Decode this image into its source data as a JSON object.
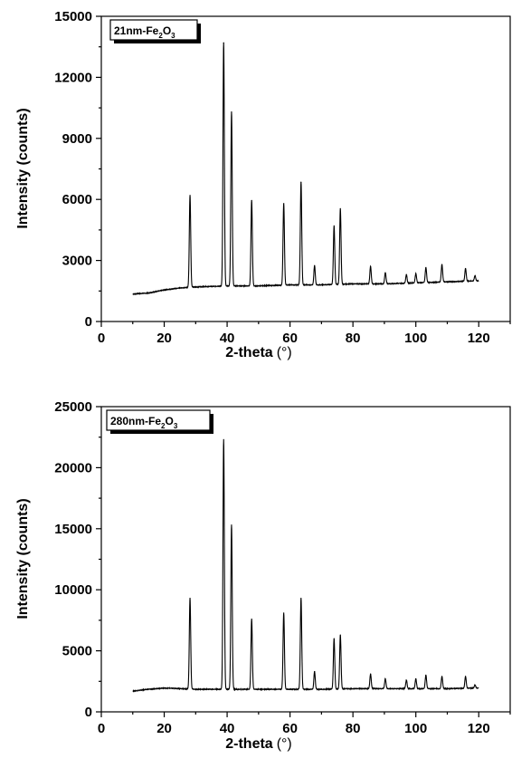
{
  "chart_data": [
    {
      "type": "line",
      "legend_label": "21nm-Fe₂O₃",
      "legend_parts": {
        "pre": "21nm-Fe",
        "sub1": "2",
        "mid": "O",
        "sub2": "3"
      },
      "xlabel": "2-theta (°)",
      "xlabel_parts": {
        "main": "2-theta",
        "unit": "(°)"
      },
      "ylabel": "Intensity (counts)",
      "xlim": [
        0,
        130
      ],
      "ylim": [
        0,
        15000
      ],
      "xticks": [
        0,
        20,
        40,
        60,
        80,
        100,
        120
      ],
      "yticks": [
        0,
        3000,
        6000,
        9000,
        12000,
        15000
      ],
      "baseline": [
        [
          10,
          1350
        ],
        [
          15,
          1400
        ],
        [
          20,
          1550
        ],
        [
          25,
          1650
        ],
        [
          30,
          1700
        ],
        [
          40,
          1750
        ],
        [
          50,
          1750
        ],
        [
          60,
          1800
        ],
        [
          70,
          1800
        ],
        [
          80,
          1850
        ],
        [
          90,
          1850
        ],
        [
          100,
          1900
        ],
        [
          110,
          1950
        ],
        [
          120,
          2000
        ]
      ],
      "peaks": [
        {
          "x": 28.2,
          "y": 6200
        },
        {
          "x": 38.9,
          "y": 13700
        },
        {
          "x": 41.4,
          "y": 10300
        },
        {
          "x": 47.8,
          "y": 5950
        },
        {
          "x": 58.0,
          "y": 5800
        },
        {
          "x": 63.5,
          "y": 6850
        },
        {
          "x": 67.8,
          "y": 2750
        },
        {
          "x": 74.0,
          "y": 4700
        },
        {
          "x": 76.0,
          "y": 5550
        },
        {
          "x": 85.6,
          "y": 2700
        },
        {
          "x": 90.3,
          "y": 2400
        },
        {
          "x": 97.0,
          "y": 2300
        },
        {
          "x": 100.0,
          "y": 2350
        },
        {
          "x": 103.2,
          "y": 2650
        },
        {
          "x": 108.3,
          "y": 2800
        },
        {
          "x": 115.8,
          "y": 2600
        },
        {
          "x": 118.8,
          "y": 2250
        }
      ]
    },
    {
      "type": "line",
      "legend_label": "280nm-Fe₂O₃",
      "legend_parts": {
        "pre": "280nm-Fe",
        "sub1": "2",
        "mid": "O",
        "sub2": "3"
      },
      "xlabel": "2-theta (°)",
      "xlabel_parts": {
        "main": "2-theta",
        "unit": "(°)"
      },
      "ylabel": "Intensity (counts)",
      "xlim": [
        0,
        130
      ],
      "ylim": [
        0,
        25000
      ],
      "xticks": [
        0,
        20,
        40,
        60,
        80,
        100,
        120
      ],
      "yticks": [
        0,
        5000,
        10000,
        15000,
        20000,
        25000
      ],
      "baseline": [
        [
          10,
          1700
        ],
        [
          15,
          1850
        ],
        [
          20,
          1950
        ],
        [
          25,
          1900
        ],
        [
          30,
          1850
        ],
        [
          40,
          1850
        ],
        [
          50,
          1850
        ],
        [
          60,
          1850
        ],
        [
          70,
          1850
        ],
        [
          80,
          1900
        ],
        [
          90,
          1900
        ],
        [
          100,
          1900
        ],
        [
          110,
          1900
        ],
        [
          120,
          1950
        ]
      ],
      "peaks": [
        {
          "x": 28.2,
          "y": 9300
        },
        {
          "x": 38.9,
          "y": 22300
        },
        {
          "x": 41.4,
          "y": 15300
        },
        {
          "x": 47.8,
          "y": 7600
        },
        {
          "x": 58.0,
          "y": 8100
        },
        {
          "x": 63.5,
          "y": 9300
        },
        {
          "x": 67.8,
          "y": 3300
        },
        {
          "x": 74.0,
          "y": 6000
        },
        {
          "x": 76.0,
          "y": 6300
        },
        {
          "x": 85.6,
          "y": 3100
        },
        {
          "x": 90.3,
          "y": 2700
        },
        {
          "x": 97.0,
          "y": 2600
        },
        {
          "x": 100.0,
          "y": 2700
        },
        {
          "x": 103.2,
          "y": 3000
        },
        {
          "x": 108.3,
          "y": 2900
        },
        {
          "x": 115.8,
          "y": 2900
        },
        {
          "x": 118.8,
          "y": 2200
        }
      ]
    }
  ]
}
